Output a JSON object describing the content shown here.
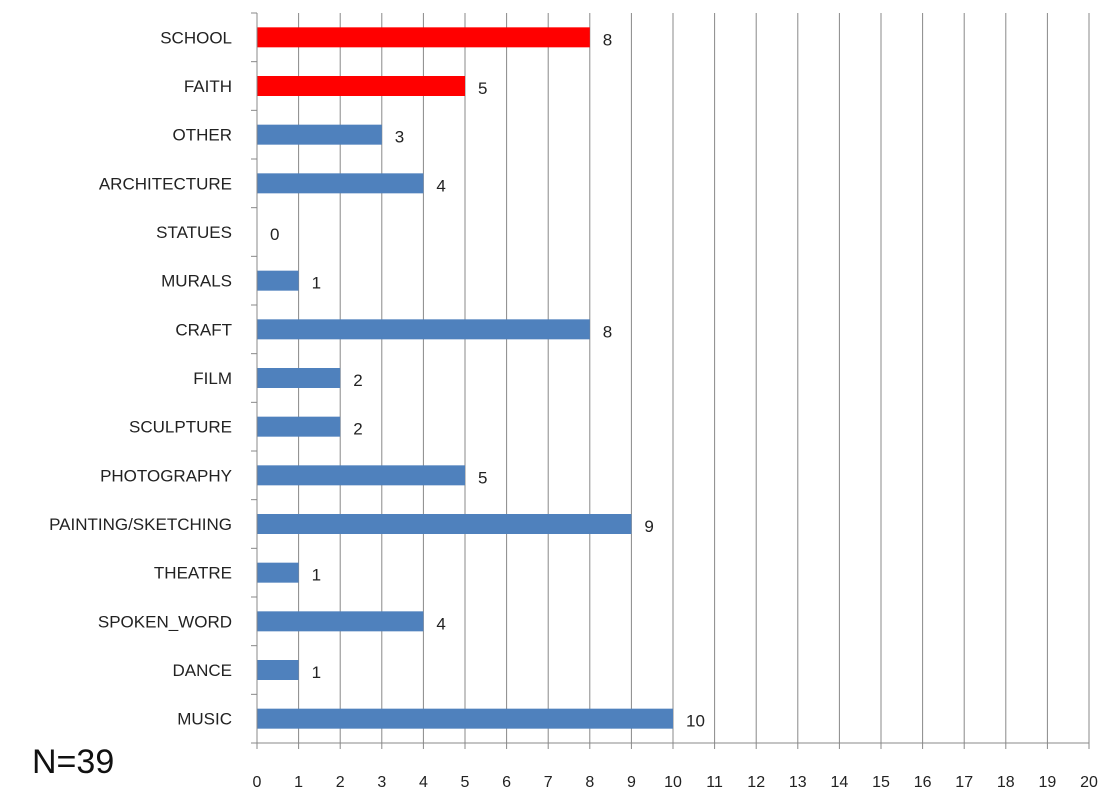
{
  "chart_data": {
    "type": "bar",
    "orientation": "horizontal",
    "categories": [
      "SCHOOL",
      "FAITH",
      "OTHER",
      "ARCHITECTURE",
      "STATUES",
      "MURALS",
      "CRAFT",
      "FILM",
      "SCULPTURE",
      "PHOTOGRAPHY",
      "PAINTING/SKETCHING",
      "THEATRE",
      "SPOKEN_WORD",
      "DANCE",
      "MUSIC"
    ],
    "values": [
      8,
      5,
      3,
      4,
      0,
      1,
      8,
      2,
      2,
      5,
      9,
      1,
      4,
      1,
      10
    ],
    "bar_colors": [
      "#ff0000",
      "#ff0000",
      "#4f81bd",
      "#4f81bd",
      "#4f81bd",
      "#4f81bd",
      "#4f81bd",
      "#4f81bd",
      "#4f81bd",
      "#4f81bd",
      "#4f81bd",
      "#4f81bd",
      "#4f81bd",
      "#4f81bd",
      "#4f81bd"
    ],
    "xlim": [
      0,
      20
    ],
    "x_ticks": [
      0,
      1,
      2,
      3,
      4,
      5,
      6,
      7,
      8,
      9,
      10,
      11,
      12,
      13,
      14,
      15,
      16,
      17,
      18,
      19,
      20
    ],
    "grid": "vertical",
    "data_labels": true
  },
  "annotation": "N=39",
  "colors": {
    "highlight": "#ff0000",
    "default_bar": "#4f81bd",
    "grid": "#888888"
  }
}
